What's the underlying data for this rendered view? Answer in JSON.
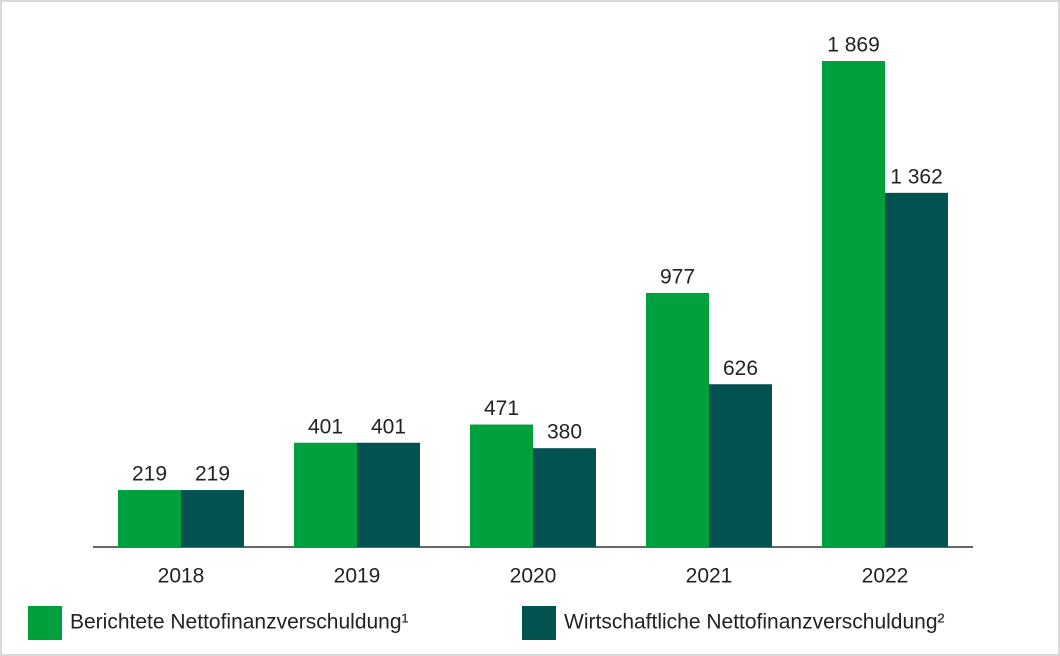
{
  "chart_data": {
    "type": "bar",
    "categories": [
      "2018",
      "2019",
      "2020",
      "2021",
      "2022"
    ],
    "series": [
      {
        "name": "Berichtete Nettofinanzverschuldung¹",
        "color": "#00a03c",
        "values": [
          219,
          401,
          471,
          977,
          1869
        ],
        "value_labels": [
          "219",
          "401",
          "471",
          "977",
          "1 869"
        ]
      },
      {
        "name": "Wirtschaftliche Nettofinanzverschuldung²",
        "color": "#02534f",
        "values": [
          219,
          401,
          380,
          626,
          1362
        ],
        "value_labels": [
          "219",
          "401",
          "380",
          "626",
          "1 362"
        ]
      }
    ]
  }
}
